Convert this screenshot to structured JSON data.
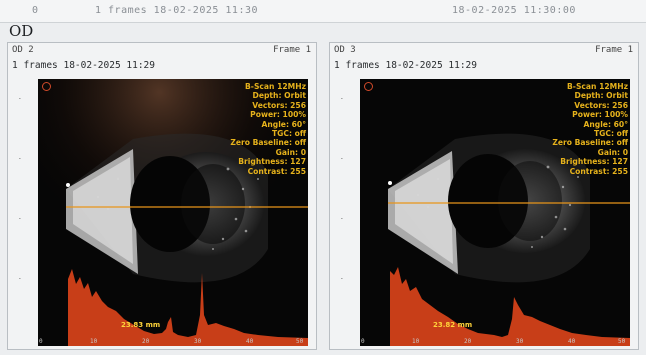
{
  "header": {
    "left_value": "0",
    "center_text": "1 frames 18-02-2025 11:30",
    "right_text": "18-02-2025 11:30:00"
  },
  "eye_label": "OD",
  "panels": [
    {
      "id_label": "OD  2",
      "frame_label": "Frame 1",
      "subtitle": "1 frames 18-02-2025 11:29",
      "params": [
        "B-Scan 12MHz",
        "Depth: Orbit",
        "Vectors: 256",
        "Power: 100%",
        "Angle: 60°",
        "TGC: off",
        "Zero Baseline: off",
        "Gain: 0",
        "Brightness: 127",
        "Contrast: 255"
      ],
      "measurement": "23.83 mm",
      "bottom_ticks": [
        "0",
        "10",
        "20",
        "30",
        "40",
        "50"
      ]
    },
    {
      "id_label": "OD  3",
      "frame_label": "Frame 1",
      "subtitle": "1 frames 18-02-2025 11:29",
      "params": [
        "B-Scan 12MHz",
        "Depth: Orbit",
        "Vectors: 256",
        "Power: 100%",
        "Angle: 60°",
        "TGC: off",
        "Zero Baseline: off",
        "Gain: 0",
        "Brightness: 127",
        "Contrast: 255"
      ],
      "measurement": "23.82 mm",
      "bottom_ticks": [
        "0",
        "10",
        "20",
        "30",
        "40",
        "50"
      ]
    }
  ],
  "colors": {
    "param_text": "#e6b21c",
    "scan_line": "#e8951a",
    "a_scan_fill": "#d9431a",
    "measurement_text": "#ffd43a"
  }
}
